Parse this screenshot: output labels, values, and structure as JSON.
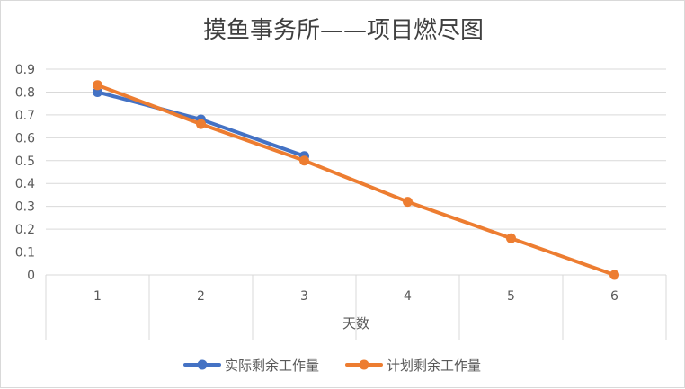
{
  "chart_data": {
    "type": "line",
    "title": "摸鱼事务所——项目燃尽图",
    "xlabel": "天数",
    "ylabel": "",
    "x": [
      1,
      2,
      3,
      4,
      5,
      6
    ],
    "x_tick_labels": [
      "1",
      "2",
      "3",
      "4",
      "5",
      "6"
    ],
    "ylim": [
      0,
      0.9
    ],
    "y_ticks": [
      0,
      0.1,
      0.2,
      0.3,
      0.4,
      0.5,
      0.6,
      0.7,
      0.8,
      0.9
    ],
    "y_tick_labels": [
      "0",
      "0.1",
      "0.2",
      "0.3",
      "0.4",
      "0.5",
      "0.6",
      "0.7",
      "0.8",
      "0.9"
    ],
    "grid": true,
    "legend_position": "bottom",
    "series": [
      {
        "name": "实际剩余工作量",
        "color": "#4472C4",
        "values": [
          0.8,
          0.68,
          0.52,
          null,
          null,
          null
        ]
      },
      {
        "name": "计划剩余工作量",
        "color": "#ED7D31",
        "values": [
          0.83,
          0.66,
          0.5,
          0.32,
          0.16,
          0.0
        ]
      }
    ]
  }
}
